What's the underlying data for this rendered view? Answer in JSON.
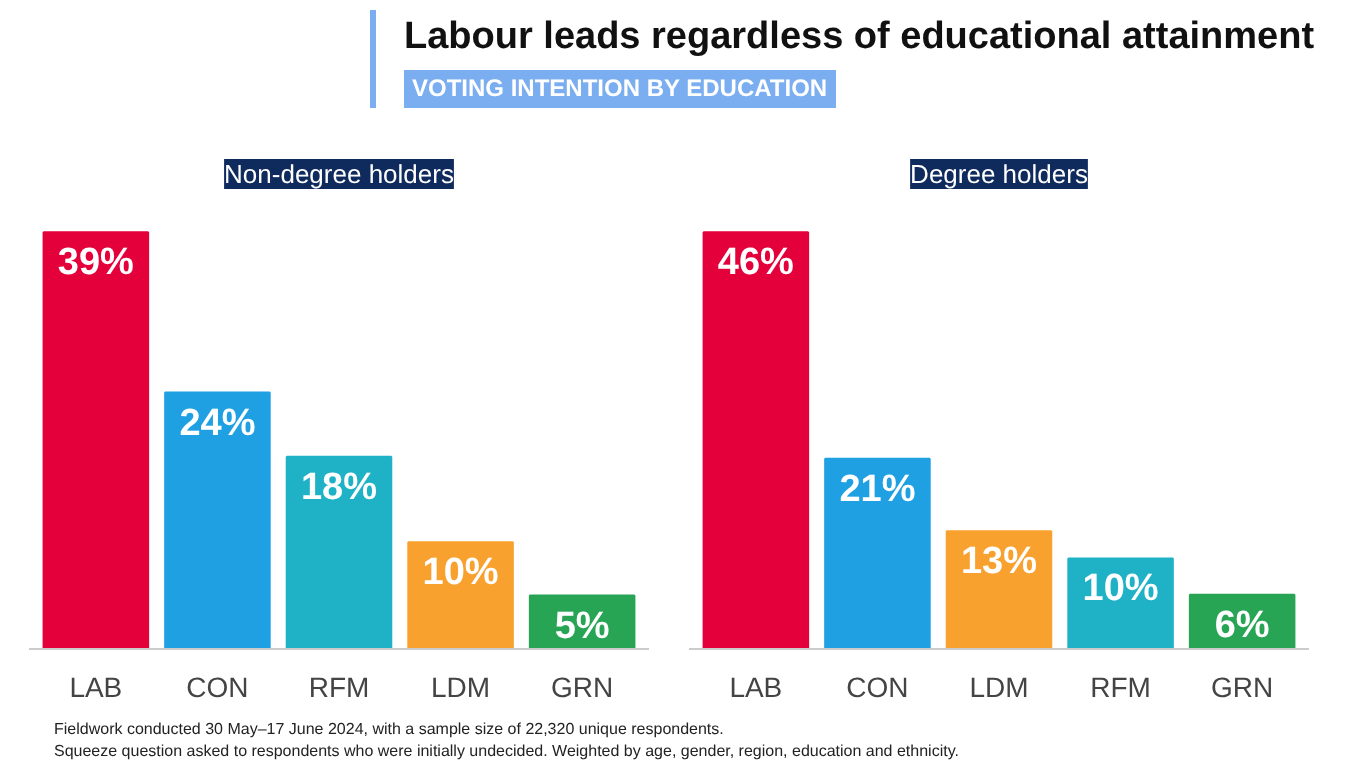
{
  "chart_data": [
    {
      "type": "other",
      "title": "Labour leads regardless of educational attainment",
      "subtitle": "VOTING INTENTION BY EDUCATION",
      "annotations": [
        "Fieldwork conducted 30 May–17 June 2024, with a sample size of 22,320 unique respondents.",
        "Squeeze question asked to respondents who were initially undecided. Weighted by age, gender, region, education and ethnicity."
      ]
    },
    {
      "type": "bar",
      "title": "Non-degree holders",
      "categories": [
        "LAB",
        "CON",
        "RFM",
        "LDM",
        "GRN"
      ],
      "values": [
        39,
        24,
        18,
        10,
        5
      ],
      "value_labels": [
        "39%",
        "24%",
        "18%",
        "10%",
        "5%"
      ],
      "colors": [
        "#e4003b",
        "#1fa0e3",
        "#1fb2c6",
        "#f9a12e",
        "#27a454"
      ]
    },
    {
      "type": "bar",
      "title": "Degree holders",
      "categories": [
        "LAB",
        "CON",
        "LDM",
        "RFM",
        "GRN"
      ],
      "values": [
        46,
        21,
        13,
        10,
        6
      ],
      "value_labels": [
        "46%",
        "21%",
        "13%",
        "10%",
        "6%"
      ],
      "colors": [
        "#e4003b",
        "#1fa0e3",
        "#f9a12e",
        "#1fb2c6",
        "#27a454"
      ]
    }
  ]
}
